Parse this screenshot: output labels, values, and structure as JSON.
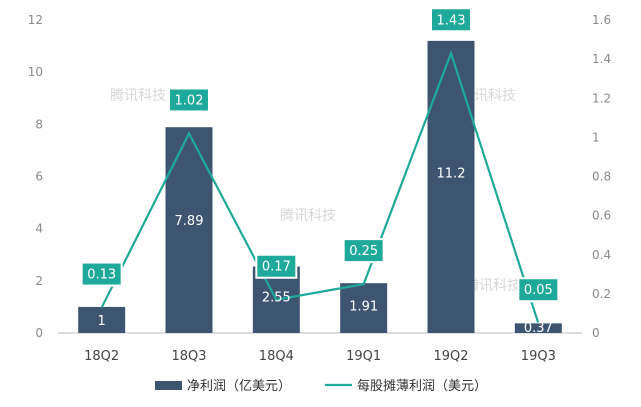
{
  "chart_data": {
    "type": "bar",
    "categories": [
      "18Q2",
      "18Q3",
      "18Q4",
      "19Q1",
      "19Q2",
      "19Q3"
    ],
    "series": [
      {
        "name": "净利润（亿美元）",
        "type": "bar",
        "axis": "left",
        "color": "#3e5572",
        "values": [
          1,
          7.89,
          2.55,
          1.91,
          11.2,
          0.37
        ],
        "labels": [
          "1",
          "7.89",
          "2.55",
          "1.91",
          "11.2",
          "0.37"
        ]
      },
      {
        "name": "每股摊薄利润（美元）",
        "type": "line",
        "axis": "right",
        "color": "#1fa99a",
        "values": [
          0.13,
          1.02,
          0.17,
          0.25,
          1.43,
          0.05
        ],
        "labels": [
          "0.13",
          "1.02",
          "0.17",
          "0.25",
          "1.43",
          "0.05"
        ]
      }
    ],
    "ylim_left": [
      0,
      12
    ],
    "yticks_left": [
      "0",
      "2",
      "4",
      "6",
      "8",
      "10",
      "12"
    ],
    "ylim_right": [
      0,
      1.6
    ],
    "yticks_right": [
      "0",
      "0.2",
      "0.4",
      "0.6",
      "0.8",
      "1",
      "1.2",
      "1.4",
      "1.6"
    ],
    "grid": false,
    "legend_position": "bottom",
    "watermark": "腾讯科技"
  }
}
